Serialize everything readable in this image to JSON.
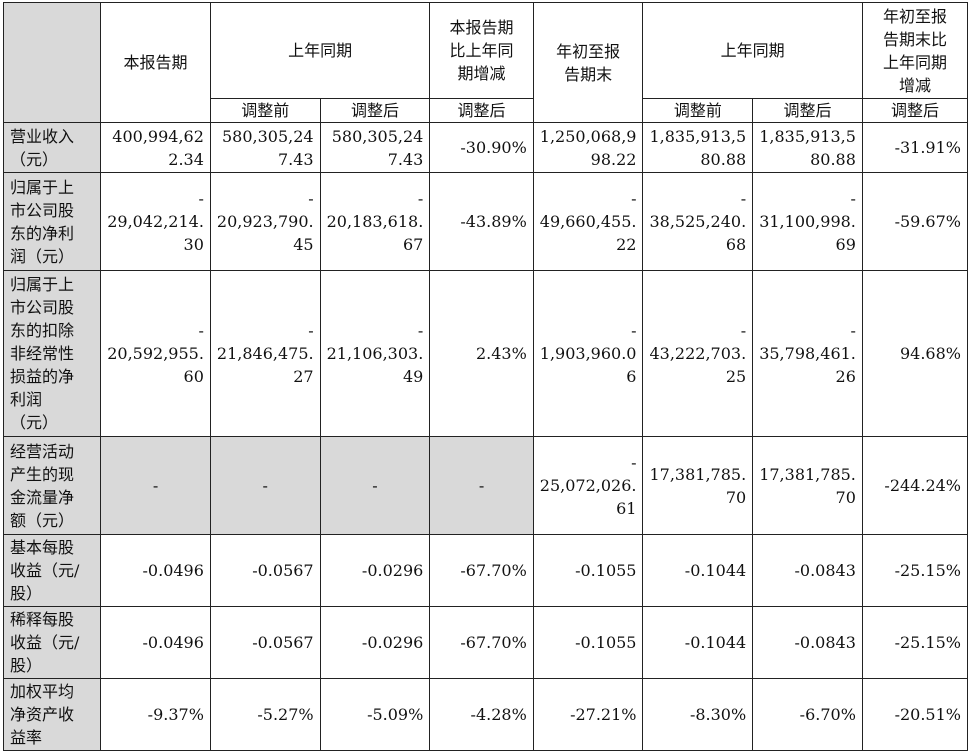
{
  "header": {
    "this_period": "本报告期",
    "prior_year_same_period": "上年同期",
    "change_vs_prior_year": "本报告期\n比上年同\n期增减",
    "ytd_end": "年初至报\n告期末",
    "prior_year_same_period_2": "上年同期",
    "ytd_change_vs_prior_year": "年初至报\n告期末比\n上年同期\n增减",
    "before_adjustment": "调整前",
    "after_adjustment": "调整后",
    "after_adjustment_change": "调整后",
    "before_adjustment_2": "调整前",
    "after_adjustment_2": "调整后",
    "after_adjustment_change_2": "调整后"
  },
  "rows": [
    {
      "label": "营业收入\n（元）",
      "values": [
        "400,994,62\n2.34",
        "580,305,24\n7.43",
        "580,305,24\n7.43",
        "-30.90%",
        "1,250,068,9\n98.22",
        "1,835,913,5\n80.88",
        "1,835,913,5\n80.88",
        "-31.91%"
      ]
    },
    {
      "label": "归属于上\n市公司股\n东的净利\n润（元）",
      "values": [
        "-\n29,042,214.\n30",
        "-\n20,923,790.\n45",
        "-\n20,183,618.\n67",
        "-43.89%",
        "-\n49,660,455.\n22",
        "-\n38,525,240.\n68",
        "-\n31,100,998.\n69",
        "-59.67%"
      ]
    },
    {
      "label": "归属于上\n市公司股\n东的扣除\n非经常性\n损益的净\n利润\n（元）",
      "values": [
        "-\n20,592,955.\n60",
        "-\n21,846,475.\n27",
        "-\n21,106,303.\n49",
        "2.43%",
        "-\n1,903,960.0\n6",
        "-\n43,222,703.\n25",
        "-\n35,798,461.\n26",
        "94.68%"
      ]
    },
    {
      "label": "经营活动\n产生的现\n金流量净\n额（元）",
      "values": [
        "-",
        "-",
        "-",
        "-",
        "-\n25,072,026.\n61",
        "17,381,785.\n70",
        "17,381,785.\n70",
        "-244.24%"
      ]
    },
    {
      "label": "基本每股\n收益（元/\n股）",
      "values": [
        "-0.0496",
        "-0.0567",
        "-0.0296",
        "-67.70%",
        "-0.1055",
        "-0.1044",
        "-0.0843",
        "-25.15%"
      ]
    },
    {
      "label": "稀释每股\n收益（元/\n股）",
      "values": [
        "-0.0496",
        "-0.0567",
        "-0.0296",
        "-67.70%",
        "-0.1055",
        "-0.1044",
        "-0.0843",
        "-25.15%"
      ]
    },
    {
      "label": "加权平均\n净资产收\n益率",
      "values": [
        "-9.37%",
        "-5.27%",
        "-5.09%",
        "-4.28%",
        "-27.21%",
        "-8.30%",
        "-6.70%",
        "-20.51%"
      ]
    }
  ]
}
